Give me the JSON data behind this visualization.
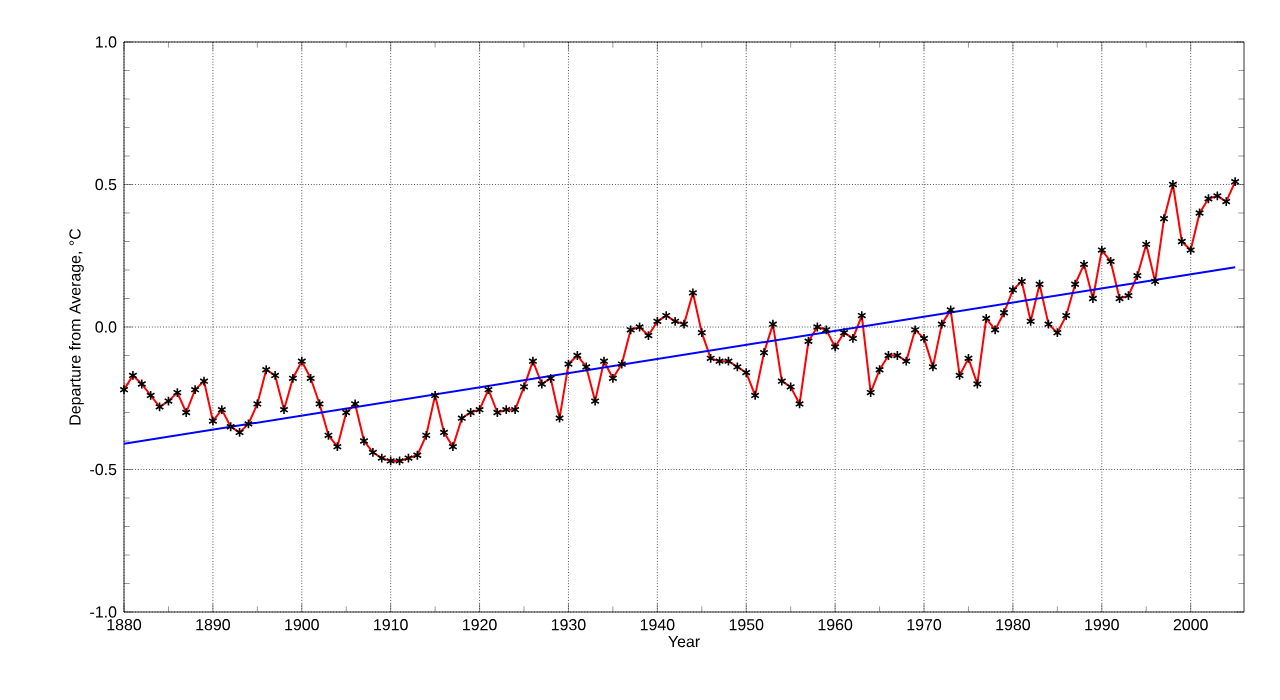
{
  "chart_data": {
    "type": "line",
    "xlabel": "Year",
    "ylabel": "Departure from Average, °C",
    "x": [
      1880,
      1881,
      1882,
      1883,
      1884,
      1885,
      1886,
      1887,
      1888,
      1889,
      1890,
      1891,
      1892,
      1893,
      1894,
      1895,
      1896,
      1897,
      1898,
      1899,
      1900,
      1901,
      1902,
      1903,
      1904,
      1905,
      1906,
      1907,
      1908,
      1909,
      1910,
      1911,
      1912,
      1913,
      1914,
      1915,
      1916,
      1917,
      1918,
      1919,
      1920,
      1921,
      1922,
      1923,
      1924,
      1925,
      1926,
      1927,
      1928,
      1929,
      1930,
      1931,
      1932,
      1933,
      1934,
      1935,
      1936,
      1937,
      1938,
      1939,
      1940,
      1941,
      1942,
      1943,
      1944,
      1945,
      1946,
      1947,
      1948,
      1949,
      1950,
      1951,
      1952,
      1953,
      1954,
      1955,
      1956,
      1957,
      1958,
      1959,
      1960,
      1961,
      1962,
      1963,
      1964,
      1965,
      1966,
      1967,
      1968,
      1969,
      1970,
      1971,
      1972,
      1973,
      1974,
      1975,
      1976,
      1977,
      1978,
      1979,
      1980,
      1981,
      1982,
      1983,
      1984,
      1985,
      1986,
      1987,
      1988,
      1989,
      1990,
      1991,
      1992,
      1993,
      1994,
      1995,
      1996,
      1997,
      1998,
      1999,
      2000,
      2001,
      2002,
      2003,
      2004,
      2005
    ],
    "series": [
      {
        "color": "#ff0000",
        "marker": "none",
        "values": [
          -0.22,
          -0.17,
          -0.2,
          -0.24,
          -0.28,
          -0.26,
          -0.23,
          -0.3,
          -0.22,
          -0.19,
          -0.33,
          -0.29,
          -0.35,
          -0.37,
          -0.34,
          -0.27,
          -0.15,
          -0.17,
          -0.29,
          -0.18,
          -0.12,
          -0.18,
          -0.27,
          -0.38,
          -0.42,
          -0.3,
          -0.27,
          -0.4,
          -0.44,
          -0.46,
          -0.47,
          -0.47,
          -0.46,
          -0.45,
          -0.38,
          -0.24,
          -0.37,
          -0.42,
          -0.32,
          -0.3,
          -0.29,
          -0.22,
          -0.3,
          -0.29,
          -0.29,
          -0.21,
          -0.12,
          -0.2,
          -0.18,
          -0.32,
          -0.13,
          -0.1,
          -0.14,
          -0.26,
          -0.12,
          -0.18,
          -0.13,
          -0.01,
          0.0,
          -0.03,
          0.02,
          0.04,
          0.02,
          0.01,
          0.12,
          -0.02,
          -0.11,
          -0.12,
          -0.12,
          -0.14,
          -0.16,
          -0.24,
          -0.09,
          0.01,
          -0.19,
          -0.21,
          -0.27,
          -0.05,
          0.0,
          -0.01,
          -0.07,
          -0.02,
          -0.04,
          0.04,
          -0.23,
          -0.15,
          -0.1,
          -0.1,
          -0.12,
          -0.01,
          -0.04,
          -0.14,
          0.01,
          0.06,
          -0.17,
          -0.11,
          -0.2,
          0.03,
          -0.01,
          0.05,
          0.13,
          0.16,
          0.02,
          0.15,
          0.01,
          -0.02,
          0.04,
          0.15,
          0.22,
          0.1,
          0.27,
          0.23,
          0.1,
          0.11,
          0.18,
          0.29,
          0.16,
          0.38,
          0.5,
          0.3,
          0.27,
          0.4,
          0.45,
          0.46,
          0.44,
          0.51
        ]
      },
      {
        "type": "scatter",
        "color": "#000000",
        "marker": "cross",
        "values": [
          -0.22,
          -0.17,
          -0.2,
          -0.24,
          -0.28,
          -0.26,
          -0.23,
          -0.3,
          -0.22,
          -0.19,
          -0.33,
          -0.29,
          -0.35,
          -0.37,
          -0.34,
          -0.27,
          -0.15,
          -0.17,
          -0.29,
          -0.18,
          -0.12,
          -0.18,
          -0.27,
          -0.38,
          -0.42,
          -0.3,
          -0.27,
          -0.4,
          -0.44,
          -0.46,
          -0.47,
          -0.47,
          -0.46,
          -0.45,
          -0.38,
          -0.24,
          -0.37,
          -0.42,
          -0.32,
          -0.3,
          -0.29,
          -0.22,
          -0.3,
          -0.29,
          -0.29,
          -0.21,
          -0.12,
          -0.2,
          -0.18,
          -0.32,
          -0.13,
          -0.1,
          -0.14,
          -0.26,
          -0.12,
          -0.18,
          -0.13,
          -0.01,
          0.0,
          -0.03,
          0.02,
          0.04,
          0.02,
          0.01,
          0.12,
          -0.02,
          -0.11,
          -0.12,
          -0.12,
          -0.14,
          -0.16,
          -0.24,
          -0.09,
          0.01,
          -0.19,
          -0.21,
          -0.27,
          -0.05,
          0.0,
          -0.01,
          -0.07,
          -0.02,
          -0.04,
          0.04,
          -0.23,
          -0.15,
          -0.1,
          -0.1,
          -0.12,
          -0.01,
          -0.04,
          -0.14,
          0.01,
          0.06,
          -0.17,
          -0.11,
          -0.2,
          0.03,
          -0.01,
          0.05,
          0.13,
          0.16,
          0.02,
          0.15,
          0.01,
          -0.02,
          0.04,
          0.15,
          0.22,
          0.1,
          0.27,
          0.23,
          0.1,
          0.11,
          0.18,
          0.29,
          0.16,
          0.38,
          0.5,
          0.3,
          0.27,
          0.4,
          0.45,
          0.46,
          0.44,
          0.51
        ]
      },
      {
        "type": "line",
        "color": "#0000ff",
        "marker": "none",
        "x": [
          1880,
          2005
        ],
        "values": [
          -0.41,
          0.21
        ]
      }
    ],
    "xlim": [
      1880,
      2006
    ],
    "ylim": [
      -1.0,
      1.0
    ],
    "xticks": [
      1880,
      1890,
      1900,
      1910,
      1920,
      1930,
      1940,
      1950,
      1960,
      1970,
      1980,
      1990,
      2000
    ],
    "yticks": [
      {
        "value": -1.0,
        "label": "-1.0"
      },
      {
        "value": -0.5,
        "label": "-0.5"
      },
      {
        "value": 0.0,
        "label": "0.0"
      },
      {
        "value": 0.5,
        "label": "0.5"
      },
      {
        "value": 1.0,
        "label": "1.0"
      }
    ],
    "grid": true
  }
}
